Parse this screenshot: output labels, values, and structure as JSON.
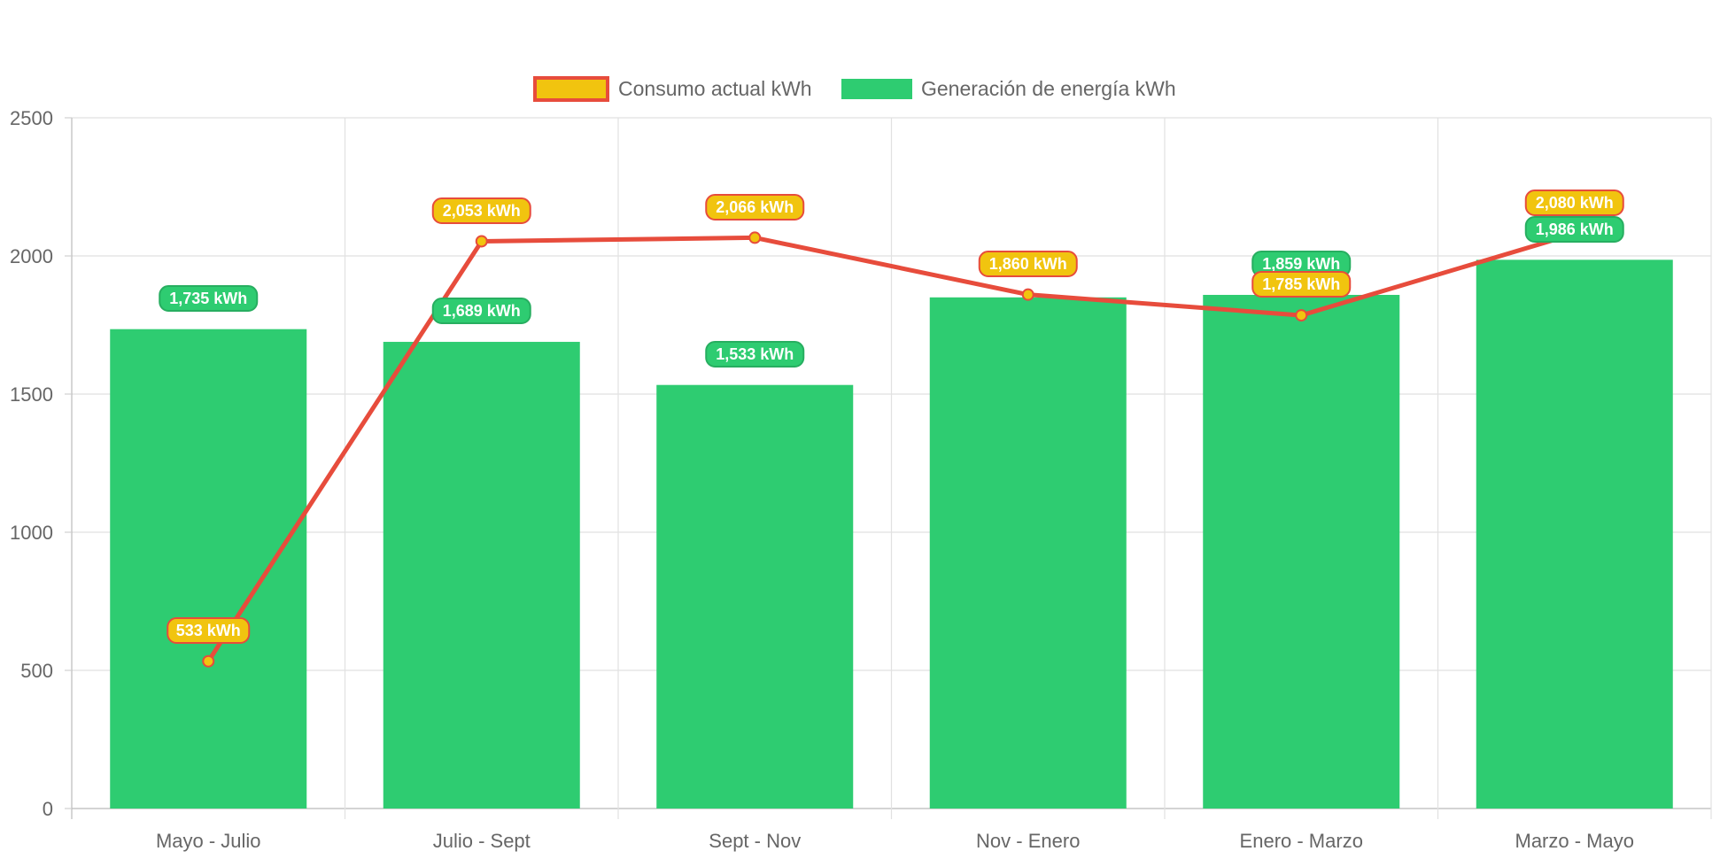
{
  "chart_data": {
    "type": "bar",
    "categories": [
      "Mayo - Julio",
      "Julio - Sept",
      "Sept - Nov",
      "Nov - Enero",
      "Enero - Marzo",
      "Marzo - Mayo"
    ],
    "series": [
      {
        "name": "Consumo actual kWh",
        "type": "line",
        "values": [
          533,
          2053,
          2066,
          1860,
          1785,
          2080
        ],
        "labels": [
          "533 kWh",
          "2,053 kWh",
          "2,066 kWh",
          "1,860 kWh",
          "1,785 kWh",
          "2,080 kWh"
        ],
        "color": "#e74c3c",
        "fill_color": "#f1c40f"
      },
      {
        "name": "Generación de energía kWh",
        "type": "bar",
        "values": [
          1735,
          1689,
          1533,
          1850,
          1859,
          1986
        ],
        "labels": [
          "1,735 kWh",
          "1,689 kWh",
          "1,533 kWh",
          "",
          "1,859 kWh",
          "1,986 kWh"
        ],
        "color": "#2ecc71"
      }
    ],
    "yticks": [
      "0",
      "500",
      "1000",
      "1500",
      "2000",
      "2500"
    ],
    "ylim": [
      0,
      2500
    ],
    "grid": true,
    "legend_position": "top-center"
  }
}
